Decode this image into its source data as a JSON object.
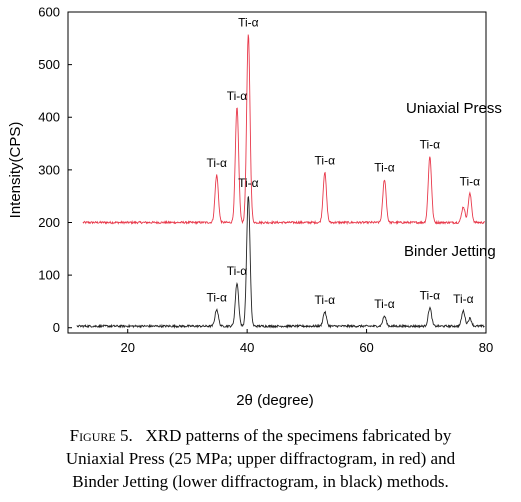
{
  "chart_data": {
    "type": "line",
    "xlabel": "2θ (degree)",
    "ylabel": "Intensity(CPS)",
    "xlim": [
      10,
      80
    ],
    "ylim": [
      -10,
      600
    ],
    "x_ticks": [
      "20",
      "40",
      "60",
      "80"
    ],
    "y_ticks": [
      "0",
      "100",
      "200",
      "300",
      "400",
      "500",
      "600"
    ],
    "grid": false,
    "series": [
      {
        "name": "Uniaxial Press",
        "color": "#e8394b",
        "baseline": 200,
        "peaks": [
          {
            "x": 34.9,
            "y": 290,
            "label": "Ti-α"
          },
          {
            "x": 38.3,
            "y": 418,
            "label": "Ti-α"
          },
          {
            "x": 40.2,
            "y": 557,
            "label": "Ti-α"
          },
          {
            "x": 53.0,
            "y": 295,
            "label": "Ti-α"
          },
          {
            "x": 63.0,
            "y": 282,
            "label": "Ti-α"
          },
          {
            "x": 70.6,
            "y": 325,
            "label": "Ti-α"
          },
          {
            "x": 76.2,
            "y": 230,
            "label": ""
          },
          {
            "x": 77.3,
            "y": 255,
            "label": "Ti-α"
          }
        ]
      },
      {
        "name": "Binder Jetting",
        "color": "#222222",
        "baseline": 3,
        "peaks": [
          {
            "x": 34.9,
            "y": 35,
            "label": "Ti-α"
          },
          {
            "x": 38.3,
            "y": 85,
            "label": "Ti-α"
          },
          {
            "x": 40.2,
            "y": 252,
            "label": "Ti-α"
          },
          {
            "x": 53.0,
            "y": 30,
            "label": "Ti-α"
          },
          {
            "x": 63.0,
            "y": 22,
            "label": "Ti-α"
          },
          {
            "x": 70.6,
            "y": 38,
            "label": "Ti-α"
          },
          {
            "x": 76.2,
            "y": 32,
            "label": "Ti-α"
          },
          {
            "x": 77.3,
            "y": 18,
            "label": ""
          }
        ]
      }
    ]
  },
  "caption": {
    "figure_no": "Figure 5.",
    "line1": "XRD patterns of the specimens fabricated by",
    "line2": "Uniaxial Press (25 MPa; upper diffractogram, in red) and",
    "line3": "Binder Jetting (lower diffractogram, in black) methods."
  }
}
